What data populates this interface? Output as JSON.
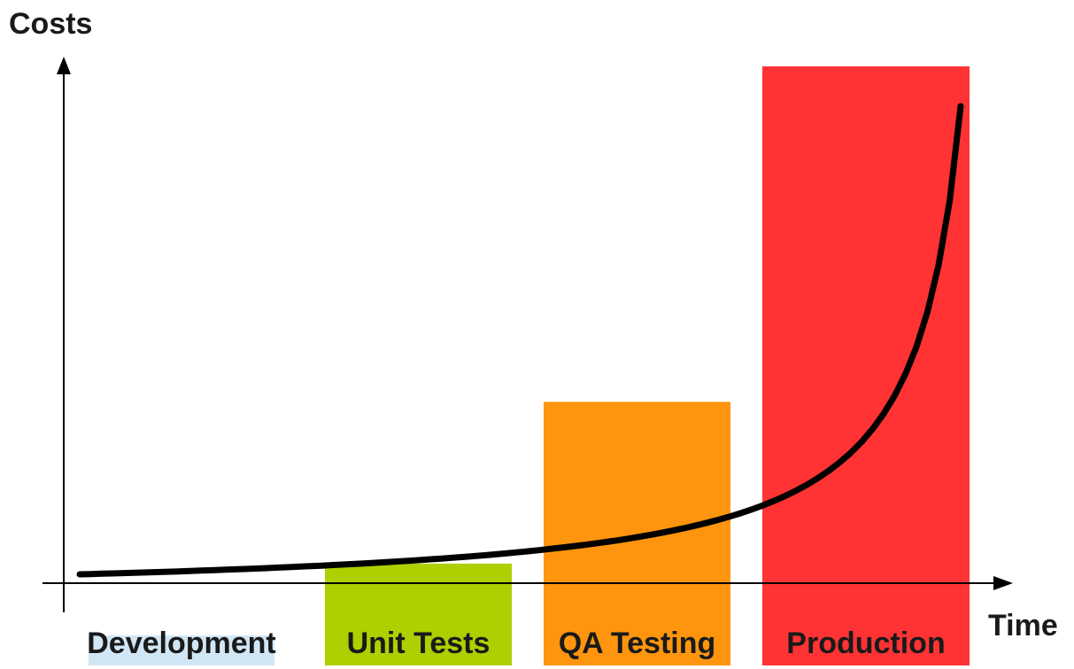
{
  "chart_data": {
    "type": "bar",
    "title": "",
    "xlabel": "Time",
    "ylabel": "Costs",
    "categories": [
      "Development",
      "Unit Tests",
      "QA Testing",
      "Production"
    ],
    "values": [
      5,
      17,
      44,
      100
    ],
    "colors": [
      "#d1e6f5",
      "#aecf00",
      "#ff950e",
      "#ff3333"
    ],
    "ylim": [
      0,
      100
    ],
    "grid": false,
    "legend": "none",
    "overlay_curve": {
      "shape": "exponential",
      "color": "#000000"
    }
  }
}
